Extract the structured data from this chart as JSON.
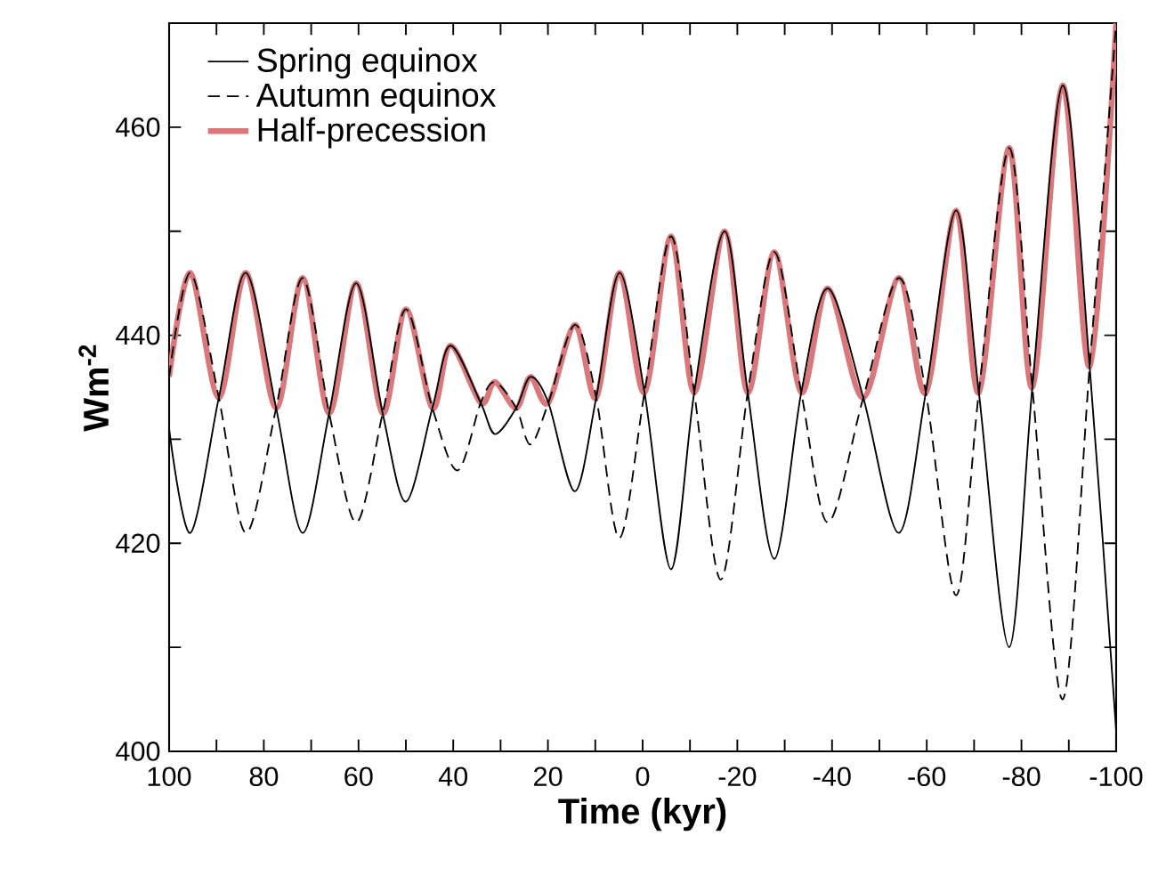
{
  "chart_data": {
    "type": "line",
    "xlabel": "Time (kyr)",
    "ylabel": "**Wm$^{-2}$**",
    "xlim": [
      100,
      -100
    ],
    "ylim": [
      400,
      470
    ],
    "xticks": [
      100,
      {
        "value": 90,
        "label": null
      },
      80,
      {
        "value": 70,
        "label": null
      },
      60,
      {
        "value": 50,
        "label": null
      },
      40,
      {
        "value": 30,
        "label": null
      },
      20,
      {
        "value": 10,
        "label": null
      },
      0,
      {
        "value": -10,
        "label": null
      },
      -20,
      {
        "value": -30,
        "label": null
      },
      -40,
      {
        "value": -50,
        "label": null
      },
      -60,
      {
        "value": -70,
        "label": null
      },
      -80,
      {
        "value": -90,
        "label": null
      },
      -100
    ],
    "yticks": [
      400,
      {
        "value": 410,
        "label": null
      },
      420,
      {
        "value": 430,
        "label": null
      },
      440,
      {
        "value": 450,
        "label": null
      },
      460
    ],
    "legend": "top left",
    "grid": false,
    "marker": "none",
    "series": [
      {
        "name": "Spring equinox",
        "color": "#000000",
        "line_style": "solid",
        "x": [
          100,
          95.5,
          89.5,
          83.8,
          77.4,
          71.8,
          66.2,
          60.5,
          54.9,
          50,
          44.4,
          40.6,
          34.2,
          31.2,
          26.7,
          23.7,
          19.9,
          14.3,
          9.8,
          4.9,
          -0.4,
          -6,
          -10.9,
          -17.3,
          -22.2,
          -27.8,
          -33.5,
          -39.1,
          -46.6,
          -54.1,
          -59.8,
          -66.2,
          -71,
          -77.4,
          -82.3,
          -88.7,
          -94.4,
          -100
        ],
        "values": [
          431,
          421,
          434,
          446,
          433,
          421,
          432.5,
          445,
          432.5,
          424,
          433,
          439,
          433.5,
          430.5,
          433,
          436,
          433.5,
          425,
          434,
          446,
          434.5,
          417.5,
          434.5,
          450,
          434.5,
          418.5,
          434.5,
          444.5,
          434,
          421,
          434.5,
          452,
          434.5,
          410,
          435,
          464,
          437,
          402
        ]
      },
      {
        "name": "Autumn equinox",
        "color": "#000000",
        "line_style": "dashed",
        "x": [
          100,
          95.5,
          89.5,
          83.8,
          77.4,
          71.8,
          66.2,
          60.5,
          54.9,
          50,
          44.4,
          39.1,
          34.2,
          31.2,
          26.7,
          23.7,
          19.9,
          14.3,
          9.8,
          4.9,
          -0.4,
          -6,
          -10.9,
          -16.5,
          -22.2,
          -27.8,
          -33.5,
          -39.1,
          -46.6,
          -54.1,
          -59.8,
          -66.2,
          -71,
          -77.4,
          -82.3,
          -88.7,
          -94.4,
          -100
        ],
        "values": [
          436,
          446,
          434,
          421,
          433,
          445.5,
          432.5,
          422,
          432.5,
          442.5,
          433,
          427,
          433.5,
          435.5,
          433,
          429.5,
          433.5,
          441,
          434,
          420.5,
          434.5,
          449.5,
          434.5,
          416.5,
          434.5,
          448,
          434.5,
          422,
          434,
          445.5,
          434.5,
          415,
          434.5,
          458,
          435,
          405,
          437,
          470
        ]
      },
      {
        "name": "Half-precession",
        "color": "#d9777a",
        "line_style": "solid",
        "x": [
          100,
          95.5,
          89.5,
          83.8,
          77.4,
          71.8,
          66.2,
          60.5,
          54.9,
          50,
          44.4,
          40.6,
          34.2,
          31.2,
          26.7,
          23.7,
          19.9,
          14.3,
          9.8,
          4.9,
          -0.4,
          -6,
          -10.9,
          -17.3,
          -22.2,
          -27.8,
          -33.5,
          -39.1,
          -46.6,
          -54.1,
          -59.8,
          -66.2,
          -71,
          -77.4,
          -82.3,
          -88.7,
          -94.4,
          -100
        ],
        "values": [
          436,
          446,
          434,
          446,
          433,
          445.5,
          432.5,
          445,
          432.5,
          442.5,
          433,
          439,
          433.5,
          435.5,
          433,
          436,
          433.5,
          441,
          434,
          446,
          434.5,
          449.5,
          434.5,
          450,
          434.5,
          448,
          434.5,
          444.5,
          434,
          445.5,
          434.5,
          452,
          434.5,
          458,
          435,
          464,
          437,
          470
        ]
      }
    ]
  }
}
